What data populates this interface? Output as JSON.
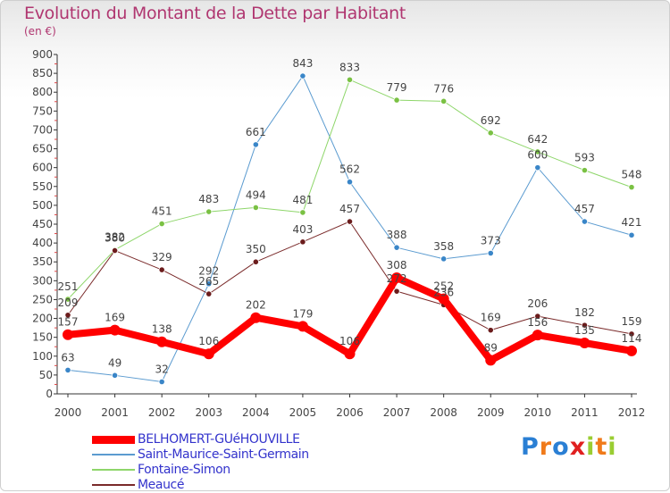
{
  "header": {
    "title": "Evolution du Montant de la Dette par Habitant",
    "subtitle": "(en €)"
  },
  "logo": {
    "text": "Proxiti",
    "letter_colors": [
      "#2a7fd4",
      "#f07a1a",
      "#2a7fd4",
      "#e02020",
      "#9acd32",
      "#f07a1a",
      "#9acd32"
    ]
  },
  "chart_data": {
    "type": "line",
    "title": "Evolution du Montant de la Dette par Habitant",
    "subtitle": "(en €)",
    "xlabel": "",
    "ylabel": "",
    "x": [
      "2000",
      "2001",
      "2002",
      "2003",
      "2004",
      "2005",
      "2006",
      "2007",
      "2008",
      "2009",
      "2010",
      "2011",
      "2012"
    ],
    "ylim": [
      0,
      900
    ],
    "yticks": [
      0,
      50,
      100,
      150,
      200,
      250,
      300,
      350,
      400,
      450,
      500,
      550,
      600,
      650,
      700,
      750,
      800,
      850,
      900
    ],
    "grid": false,
    "legend_position": "bottom-left",
    "series": [
      {
        "name": "Saint-Maurice-Saint-Germain",
        "color": "#5b9bd0",
        "marker_color": "#3a86c8",
        "width": 1,
        "values": [
          63,
          49,
          32,
          292,
          661,
          843,
          562,
          388,
          358,
          373,
          600,
          457,
          421
        ]
      },
      {
        "name": "Fontaine-Simon",
        "color": "#8ed66a",
        "marker_color": "#7ac143",
        "width": 1,
        "values": [
          251,
          382,
          451,
          483,
          494,
          481,
          833,
          779,
          776,
          692,
          642,
          593,
          548
        ]
      },
      {
        "name": "Meaucé",
        "color": "#7a2a2a",
        "marker_color": "#6b1c1c",
        "width": 1,
        "values": [
          209,
          380,
          329,
          265,
          350,
          403,
          457,
          272,
          236,
          169,
          206,
          182,
          159
        ]
      },
      {
        "name": "BELHOMERT-GUéHOUVILLE",
        "color": "#ff0000",
        "marker_color": "#ff0000",
        "width": 8,
        "values": [
          157,
          169,
          138,
          106,
          202,
          179,
          106,
          308,
          252,
          89,
          156,
          135,
          114
        ]
      }
    ]
  }
}
